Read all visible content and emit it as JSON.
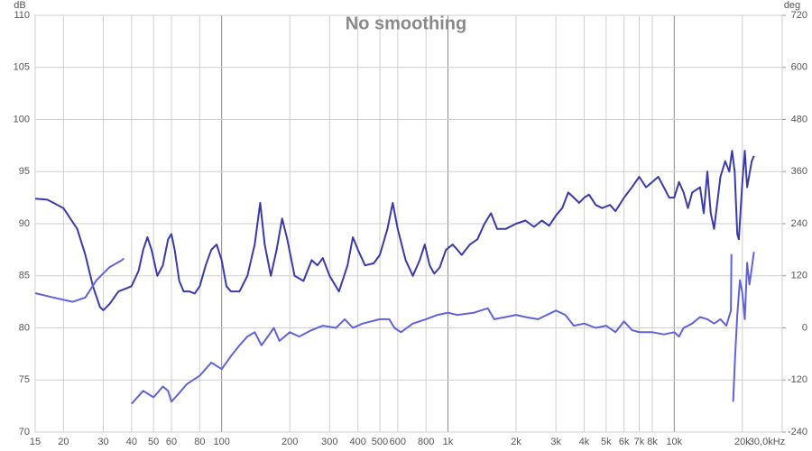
{
  "chart_data": {
    "type": "line",
    "title": "No smoothing",
    "y_label": "dB",
    "y2_label": "deg",
    "xscale": "log",
    "grid": true,
    "xlim": [
      15,
      30000
    ],
    "xticks": [
      15,
      20,
      30,
      40,
      50,
      60,
      80,
      100,
      200,
      300,
      400,
      500,
      600,
      800,
      {
        "value": 1000,
        "label": "1k"
      },
      {
        "value": 2000,
        "label": "2k"
      },
      {
        "value": 3000,
        "label": "3k"
      },
      {
        "value": 4000,
        "label": "4k"
      },
      {
        "value": 5000,
        "label": "5k"
      },
      {
        "value": 6000,
        "label": "6k"
      },
      {
        "value": 7000,
        "label": "7k"
      },
      {
        "value": 8000,
        "label": "8k"
      },
      {
        "value": 10000,
        "label": "10k"
      },
      {
        "value": 20000,
        "label": "20k"
      },
      {
        "value": 30000,
        "label": "30,0kHz"
      }
    ],
    "ylim": [
      70,
      110
    ],
    "yticks": [
      70,
      75,
      80,
      85,
      90,
      95,
      100,
      105,
      110
    ],
    "y2lim": [
      -240,
      720
    ],
    "y2ticks": [
      -240,
      -120,
      0,
      120,
      240,
      360,
      480,
      600,
      720
    ],
    "series": [
      {
        "color": "#3a3aa8",
        "x": [
          15,
          17,
          20,
          23,
          25,
          27,
          29,
          30,
          32,
          35,
          38,
          40,
          43,
          45,
          47,
          49,
          52,
          55,
          58,
          60,
          62,
          65,
          68,
          72,
          76,
          80,
          85,
          90,
          95,
          100,
          105,
          110,
          120,
          130,
          140,
          148,
          155,
          165,
          175,
          185,
          195,
          210,
          230,
          250,
          265,
          280,
          300,
          330,
          360,
          380,
          400,
          430,
          470,
          500,
          540,
          570,
          600,
          650,
          700,
          750,
          790,
          830,
          870,
          920,
          980,
          1050,
          1100,
          1150,
          1250,
          1350,
          1450,
          1550,
          1650,
          1800,
          2000,
          2200,
          2400,
          2600,
          2800,
          3000,
          3200,
          3400,
          3600,
          3800,
          4000,
          4200,
          4500,
          4800,
          5200,
          5500,
          6000,
          6500,
          7000,
          7500,
          8000,
          8500,
          9000,
          9500,
          10000,
          10500,
          11000,
          11500,
          12000,
          13000,
          13500,
          14000,
          14500,
          15000,
          16000,
          16800,
          17500,
          18000,
          18500,
          19000,
          19300,
          20000,
          20500,
          21000,
          22000,
          22500
        ],
        "values": [
          92.4,
          92.3,
          91.5,
          89.5,
          87,
          84,
          82,
          81.7,
          82.3,
          83.5,
          83.8,
          84,
          85.5,
          87.5,
          88.7,
          87.5,
          85,
          86,
          88.5,
          89,
          87.5,
          84.5,
          83.5,
          83.5,
          83.3,
          84,
          86,
          87.5,
          88,
          86.5,
          84,
          83.5,
          83.5,
          85,
          88,
          92,
          88,
          85,
          87.5,
          90.5,
          88.5,
          85,
          84.5,
          86.5,
          86,
          86.7,
          85,
          83.5,
          86,
          88.7,
          87.5,
          86,
          86.2,
          87,
          89.5,
          92,
          89.5,
          86.5,
          85,
          86.5,
          88,
          86,
          85.2,
          85.8,
          87.5,
          88,
          87.5,
          87,
          88,
          88.5,
          90,
          91,
          89.5,
          89.5,
          90,
          90.3,
          89.7,
          90.3,
          89.8,
          90.8,
          91.5,
          93,
          92.5,
          92,
          92.5,
          92.8,
          91.8,
          91.5,
          91.8,
          91.2,
          92.5,
          93.5,
          94.5,
          93.5,
          94,
          94.5,
          93.5,
          92.5,
          92.5,
          94,
          93,
          91.5,
          93,
          93.5,
          91,
          95,
          91,
          89.5,
          94.5,
          96,
          95,
          97,
          95,
          89,
          88.5,
          94,
          97,
          93.5,
          96,
          96.5
        ]
      },
      {
        "color": "#6262d8",
        "axis": "y2",
        "x": [
          15,
          18,
          22,
          25,
          28,
          32,
          36,
          37,
          37,
          40,
          45,
          50,
          55,
          58,
          60,
          65,
          70,
          80,
          90,
          100,
          110,
          120,
          130,
          140,
          150,
          160,
          170,
          180,
          200,
          220,
          250,
          280,
          320,
          350,
          380,
          420,
          500,
          550,
          580,
          620,
          700,
          800,
          900,
          1000,
          1100,
          1300,
          1500,
          1600,
          1800,
          2000,
          2200,
          2500,
          3000,
          3300,
          3600,
          4000,
          4500,
          5000,
          5500,
          6000,
          6500,
          7000,
          8000,
          9000,
          10000,
          10500,
          11000,
          12000,
          13000,
          14000,
          15000,
          16000,
          17000,
          17800,
          17900,
          17900,
          18200,
          18600,
          19000,
          19500,
          20000,
          20500,
          21000,
          21500,
          22500
        ],
        "values": [
          80,
          70,
          60,
          70,
          110,
          140,
          155,
          160,
          null,
          -175,
          -145,
          -160,
          -135,
          -145,
          -170,
          -150,
          -130,
          -110,
          -80,
          -95,
          -65,
          -40,
          -20,
          -10,
          -40,
          -20,
          0,
          -30,
          -10,
          -20,
          -5,
          5,
          0,
          20,
          0,
          10,
          20,
          20,
          0,
          -10,
          10,
          20,
          30,
          35,
          30,
          35,
          45,
          20,
          25,
          30,
          25,
          20,
          40,
          30,
          5,
          10,
          0,
          5,
          -10,
          15,
          -5,
          -10,
          -10,
          -15,
          -10,
          -20,
          0,
          10,
          25,
          20,
          10,
          20,
          5,
          40,
          170,
          null,
          -170,
          -60,
          30,
          110,
          80,
          20,
          150,
          100,
          175
        ]
      }
    ]
  }
}
